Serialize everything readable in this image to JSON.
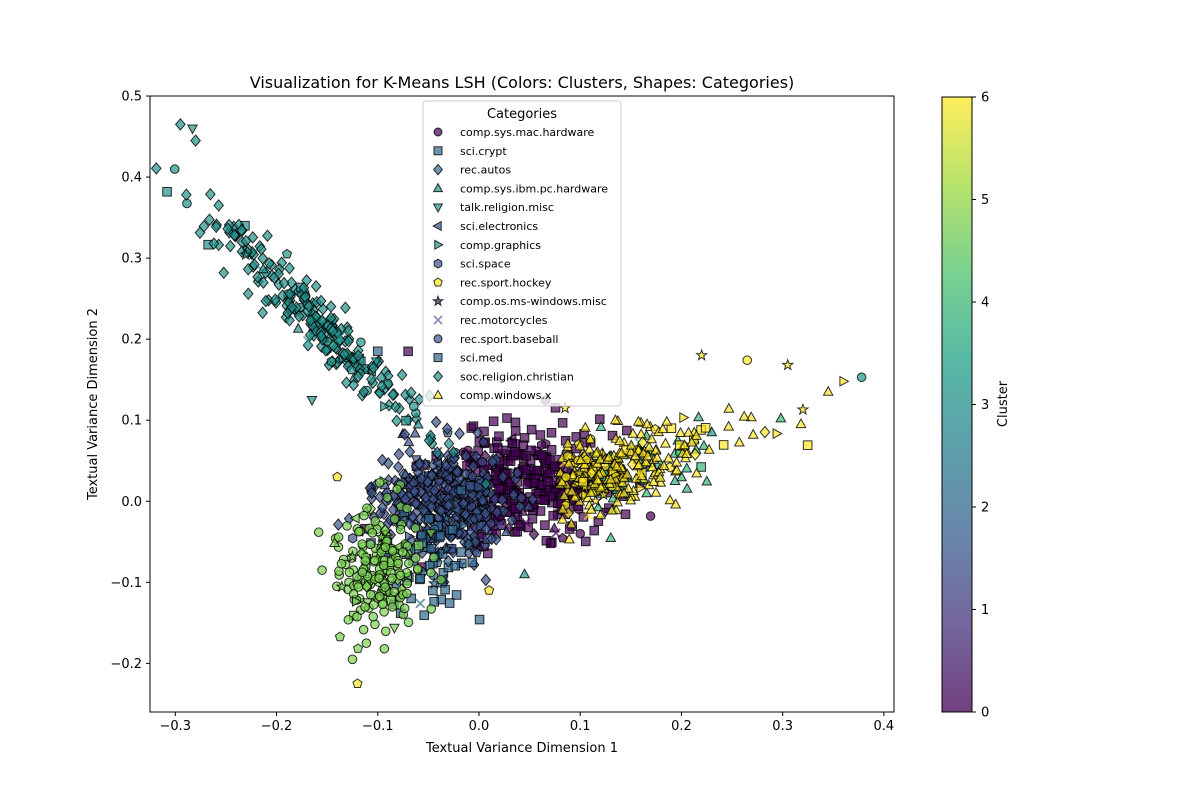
{
  "chart_data": {
    "type": "scatter",
    "title": "Visualization for K-Means LSH (Colors: Clusters, Shapes: Categories)",
    "xlabel": "Textual Variance Dimension 1",
    "ylabel": "Textual Variance Dimension 2",
    "xlim": [
      -0.325,
      0.41
    ],
    "ylim": [
      -0.26,
      0.5
    ],
    "x_ticks": [
      -0.3,
      -0.2,
      -0.1,
      0.0,
      0.1,
      0.2,
      0.3,
      0.4
    ],
    "x_tick_labels": [
      "−0.3",
      "−0.2",
      "−0.1",
      "0.0",
      "0.1",
      "0.2",
      "0.3",
      "0.4"
    ],
    "y_ticks": [
      -0.2,
      -0.1,
      0.0,
      0.1,
      0.2,
      0.3,
      0.4,
      0.5
    ],
    "y_tick_labels": [
      "−0.2",
      "−0.1",
      "0.0",
      "0.1",
      "0.2",
      "0.3",
      "0.4",
      "0.5"
    ],
    "grid": false,
    "colormap": "viridis",
    "marker_alpha": 0.7,
    "legend": {
      "title": "Categories",
      "placement": "upper-center",
      "entries": [
        {
          "label": "comp.sys.mac.hardware",
          "marker": "circle",
          "color": "#440154"
        },
        {
          "label": "sci.crypt",
          "marker": "square",
          "color": "#31688e"
        },
        {
          "label": "rec.autos",
          "marker": "diamond",
          "color": "#31688e"
        },
        {
          "label": "comp.sys.ibm.pc.hardware",
          "marker": "triangle-up",
          "color": "#21918c"
        },
        {
          "label": "talk.religion.misc",
          "marker": "triangle-down",
          "color": "#21918c"
        },
        {
          "label": "sci.electronics",
          "marker": "triangle-left",
          "color": "#3b528b"
        },
        {
          "label": "comp.graphics",
          "marker": "triangle-right",
          "color": "#21918c"
        },
        {
          "label": "sci.space",
          "marker": "hexagon",
          "color": "#3b528b"
        },
        {
          "label": "rec.sport.hockey",
          "marker": "pentagon",
          "color": "#fde725"
        },
        {
          "label": "comp.os.ms-windows.misc",
          "marker": "star",
          "color": "#2c2c54"
        },
        {
          "label": "rec.motorcycles",
          "marker": "x",
          "color": "#5b5b9b"
        },
        {
          "label": "rec.sport.baseball",
          "marker": "circle",
          "color": "#3b528b"
        },
        {
          "label": "sci.med",
          "marker": "square",
          "color": "#31688e"
        },
        {
          "label": "soc.religion.christian",
          "marker": "diamond",
          "color": "#21918c"
        },
        {
          "label": "comp.windows.x",
          "marker": "triangle-up",
          "color": "#fde725"
        }
      ]
    },
    "colorbar": {
      "label": "Cluster",
      "range": [
        0,
        6
      ],
      "ticks": [
        0,
        1,
        2,
        3,
        4,
        5,
        6
      ],
      "tick_labels": [
        "0",
        "1",
        "2",
        "3",
        "4",
        "5",
        "6"
      ]
    },
    "clusters": [
      {
        "cluster": 0,
        "color": "#440154",
        "marker": "square",
        "center": [
          0.04,
          0.02
        ],
        "spread": [
          0.045,
          0.035
        ],
        "count": 380
      },
      {
        "cluster": 1,
        "color": "#3b528b",
        "marker": "diamond",
        "center": [
          -0.04,
          0.0
        ],
        "spread": [
          0.035,
          0.035
        ],
        "count": 380
      },
      {
        "cluster": 2,
        "color": "#31688e",
        "marker": "square",
        "center": [
          -0.05,
          -0.07
        ],
        "spread": [
          0.025,
          0.035
        ],
        "count": 60
      },
      {
        "cluster": 3,
        "color": "#21918c",
        "marker": "diamond",
        "center": [
          -0.16,
          0.22
        ],
        "spread": [
          0.05,
          0.07
        ],
        "count": 260
      },
      {
        "cluster": 4,
        "color": "#35b779",
        "marker": "triangle-up",
        "center": [
          0.16,
          0.07
        ],
        "spread": [
          0.05,
          0.035
        ],
        "count": 60
      },
      {
        "cluster": 5,
        "color": "#7ad151",
        "marker": "circle",
        "center": [
          -0.1,
          -0.08
        ],
        "spread": [
          0.022,
          0.04
        ],
        "count": 200
      },
      {
        "cluster": 6,
        "color": "#fde725",
        "marker": "triangle-up",
        "center": [
          0.14,
          0.06
        ],
        "spread": [
          0.06,
          0.04
        ],
        "count": 260
      }
    ],
    "outliers": [
      {
        "x": -0.295,
        "y": 0.465,
        "cluster": 3,
        "marker": "diamond"
      },
      {
        "x": -0.283,
        "y": 0.46,
        "cluster": 3,
        "marker": "triangle-down"
      },
      {
        "x": -0.28,
        "y": 0.445,
        "cluster": 3,
        "marker": "diamond"
      },
      {
        "x": 0.378,
        "y": 0.153,
        "cluster": 3,
        "marker": "circle"
      },
      {
        "x": 0.345,
        "y": 0.135,
        "cluster": 6,
        "marker": "triangle-up"
      },
      {
        "x": 0.36,
        "y": 0.148,
        "cluster": 6,
        "marker": "triangle-right"
      },
      {
        "x": 0.305,
        "y": 0.168,
        "cluster": 6,
        "marker": "star"
      },
      {
        "x": 0.32,
        "y": 0.113,
        "cluster": 6,
        "marker": "star"
      },
      {
        "x": 0.265,
        "y": 0.174,
        "cluster": 6,
        "marker": "circle"
      },
      {
        "x": 0.22,
        "y": 0.18,
        "cluster": 6,
        "marker": "star"
      },
      {
        "x": -0.12,
        "y": -0.225,
        "cluster": 6,
        "marker": "pentagon"
      },
      {
        "x": -0.125,
        "y": -0.195,
        "cluster": 5,
        "marker": "circle"
      },
      {
        "x": -0.155,
        "y": -0.085,
        "cluster": 5,
        "marker": "circle"
      },
      {
        "x": -0.14,
        "y": 0.03,
        "cluster": 6,
        "marker": "pentagon"
      },
      {
        "x": 0.1,
        "y": -0.04,
        "cluster": 0,
        "marker": "circle"
      },
      {
        "x": 0.045,
        "y": -0.09,
        "cluster": 3,
        "marker": "triangle-up"
      },
      {
        "x": 0.01,
        "y": -0.11,
        "cluster": 6,
        "marker": "pentagon"
      },
      {
        "x": -0.165,
        "y": 0.125,
        "cluster": 3,
        "marker": "triangle-down"
      },
      {
        "x": -0.1,
        "y": 0.185,
        "cluster": 2,
        "marker": "square"
      },
      {
        "x": -0.07,
        "y": 0.185,
        "cluster": 0,
        "marker": "square"
      },
      {
        "x": 0.085,
        "y": 0.115,
        "cluster": 6,
        "marker": "star"
      },
      {
        "x": 0.23,
        "y": 0.085,
        "cluster": 3,
        "marker": "triangle-up"
      }
    ]
  }
}
